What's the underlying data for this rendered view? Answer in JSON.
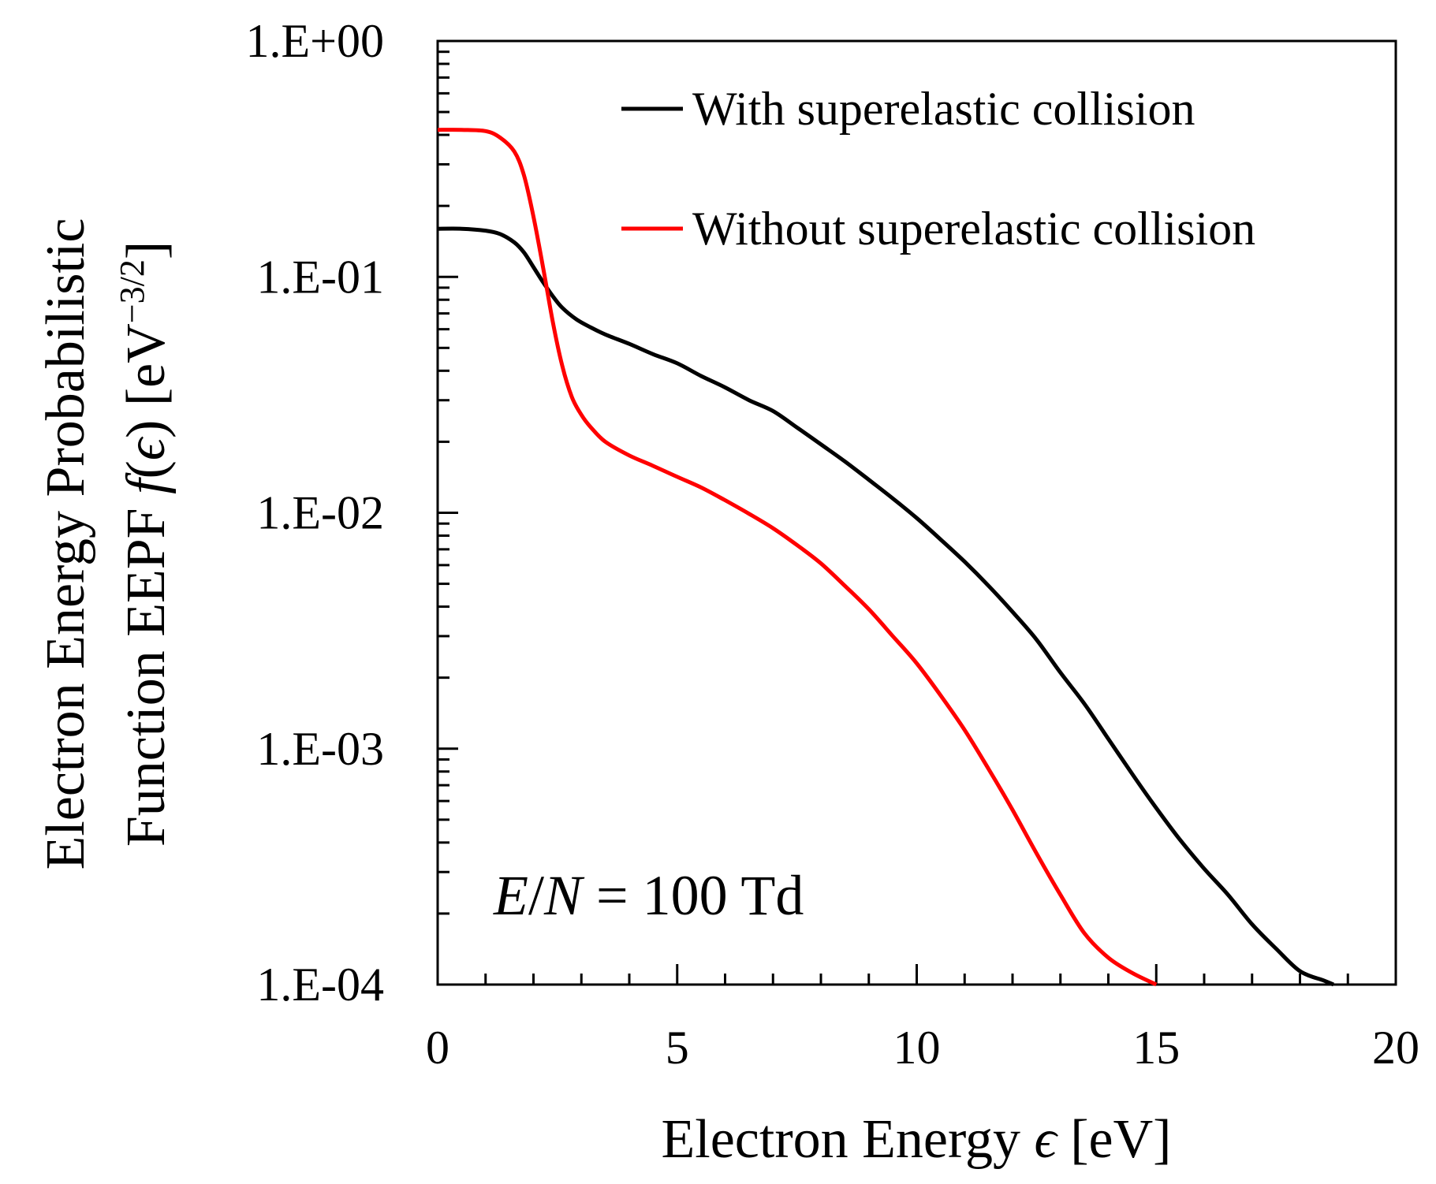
{
  "chart_data": {
    "type": "line",
    "xlabel_text": "Electron Energy",
    "xlabel_symbol": "ϵ",
    "xlabel_unit": "[eV]",
    "ylabel_line1": "Electron Energy Probabilistic",
    "ylabel_line2_text": "Function EEPF",
    "ylabel_line2_func": "f",
    "ylabel_line2_open": "(",
    "ylabel_line2_symbol": "ϵ",
    "ylabel_line2_close": ")",
    "ylabel_line2_unit": "[eV",
    "ylabel_line2_exp": "−3/2",
    "ylabel_line2_end": "]",
    "xlim": [
      0,
      20
    ],
    "ylim": [
      0.0001,
      1
    ],
    "yscale": "log",
    "x_ticks": [
      0,
      5,
      10,
      15,
      20
    ],
    "x_tick_labels": [
      "0",
      "5",
      "10",
      "15",
      "20"
    ],
    "y_ticks": [
      1,
      0.1,
      0.01,
      0.001,
      0.0001
    ],
    "y_tick_labels": [
      "1.E+00",
      "1.E-01",
      "1.E-02",
      "1.E-03",
      "1.E-04"
    ],
    "annotation": {
      "lhs_e": "E",
      "slash": "/",
      "lhs_n": "N",
      "rhs": " = 100 Td"
    },
    "legend_position": "top-right",
    "colors": {
      "with": "#000000",
      "without": "#ff0000"
    },
    "series": [
      {
        "name": "With superelastic collision",
        "color": "#000000",
        "x": [
          0,
          0.5,
          1.0,
          1.3,
          1.6,
          1.8,
          2.0,
          2.2,
          2.4,
          2.6,
          2.9,
          3.2,
          3.5,
          4,
          4.5,
          5,
          5.5,
          6,
          6.5,
          7,
          7.5,
          8,
          8.5,
          9,
          9.5,
          10,
          10.5,
          11,
          11.5,
          12,
          12.5,
          13,
          13.5,
          14,
          14.5,
          15,
          15.5,
          16,
          16.5,
          17,
          17.5,
          18,
          18.5,
          18.7
        ],
        "values": [
          0.16,
          0.16,
          0.157,
          0.152,
          0.14,
          0.127,
          0.11,
          0.095,
          0.083,
          0.074,
          0.066,
          0.061,
          0.057,
          0.052,
          0.047,
          0.043,
          0.038,
          0.034,
          0.03,
          0.027,
          0.023,
          0.0195,
          0.0165,
          0.0138,
          0.0115,
          0.0095,
          0.0077,
          0.0062,
          0.0049,
          0.0038,
          0.0029,
          0.0021,
          0.00155,
          0.0011,
          0.00078,
          0.00056,
          0.00041,
          0.00031,
          0.00024,
          0.00018,
          0.000142,
          0.000114,
          0.000104,
          0.0001
        ]
      },
      {
        "name": "Without superelastic collision",
        "color": "#ff0000",
        "x": [
          0,
          0.5,
          1.0,
          1.3,
          1.6,
          1.8,
          2.0,
          2.2,
          2.4,
          2.6,
          2.8,
          3.0,
          3.2,
          3.5,
          4,
          4.5,
          5,
          5.5,
          6,
          6.5,
          7,
          7.5,
          8,
          8.5,
          9,
          9.5,
          10,
          10.5,
          11,
          11.5,
          12,
          12.5,
          13,
          13.5,
          14,
          14.5,
          15
        ],
        "values": [
          0.42,
          0.42,
          0.415,
          0.39,
          0.34,
          0.27,
          0.18,
          0.11,
          0.065,
          0.042,
          0.031,
          0.026,
          0.023,
          0.02,
          0.0175,
          0.0158,
          0.0142,
          0.0128,
          0.0113,
          0.0099,
          0.0086,
          0.0073,
          0.0061,
          0.0049,
          0.0039,
          0.003,
          0.0023,
          0.00168,
          0.0012,
          0.00082,
          0.00055,
          0.00036,
          0.00024,
          0.000165,
          0.00013,
          0.000112,
          0.0001
        ]
      }
    ]
  }
}
